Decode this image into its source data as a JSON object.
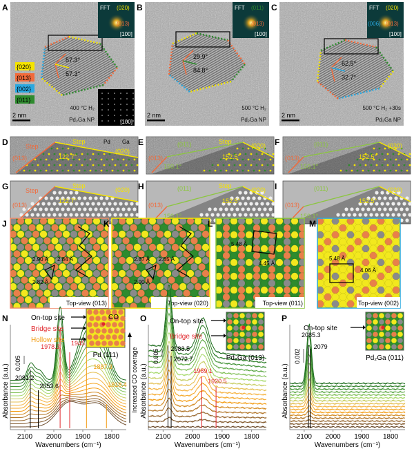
{
  "panels": {
    "A": {
      "label": "A",
      "fft": "FFT",
      "fft_spots": [
        "(020)",
        "(013)"
      ],
      "zone": "[100]",
      "zone2": "[100]",
      "angles": [
        "57.3°",
        "57.3°"
      ],
      "condition": "400 °C H₂",
      "sample": "Pd₂Ga NP",
      "scale": "2 nm",
      "legend": [
        {
          "text": "{020}",
          "color": "#f5e400"
        },
        {
          "text": "{013}",
          "color": "#f26a3a"
        },
        {
          "text": "{002}",
          "color": "#29a8e0"
        },
        {
          "text": "{011}",
          "color": "#2e8b2e"
        }
      ]
    },
    "B": {
      "label": "B",
      "fft": "FFT",
      "fft_spots": [
        "(011)",
        "(013)"
      ],
      "zone": "[100]",
      "angles": [
        "29.9°",
        "84.8°"
      ],
      "condition": "500 °C H₂",
      "sample": "Pd₂Ga NP",
      "scale": "2 nm"
    },
    "C": {
      "label": "C",
      "fft": "FFT",
      "fft_spots": [
        "(020)",
        "(006)",
        "(013)"
      ],
      "zone": "[100]",
      "angles": [
        "62.5°",
        "32.7°"
      ],
      "condition": "500 °C H₂ +30s",
      "sample": "Pd₂Ga NP",
      "scale": "2 nm"
    },
    "D": {
      "label": "D",
      "texts": [
        "Step",
        "Step",
        "(013)",
        "(020)",
        "122.7°"
      ],
      "legend": [
        "Pd",
        "Ga"
      ]
    },
    "E": {
      "label": "E",
      "texts": [
        "(011)",
        "Step",
        "(020)",
        "(013)",
        "152.5°",
        "150.1°"
      ]
    },
    "F": {
      "label": "F",
      "texts": [
        "(011)",
        "(020)",
        "(013)",
        "152.5°",
        "150.1°"
      ]
    },
    "G": {
      "label": "G",
      "texts": [
        "Step",
        "Step",
        "(020)",
        "(013)",
        "122.7°"
      ]
    },
    "H": {
      "label": "H",
      "texts": [
        "(011)",
        "Step",
        "(020)",
        "(013)",
        "152.5°",
        "150.1°"
      ]
    },
    "I": {
      "label": "I",
      "texts": [
        "(011)",
        "(020)",
        "(013)",
        "152.5°",
        "150.1°"
      ]
    },
    "J": {
      "label": "J",
      "caption": "Top-view (013)",
      "dims": [
        "2.90 Å",
        "2.82 Å",
        "2.84 Å"
      ],
      "border": "#f08c6a"
    },
    "K": {
      "label": "K",
      "caption": "Top-view (020)",
      "dims": [
        "2.87 Å",
        "2.90 Å",
        "2.85 Å"
      ],
      "border": "#f5e400"
    },
    "L": {
      "label": "L",
      "caption": "Top-view (011)",
      "dims": [
        "5.48 Å",
        "4.45 Å"
      ],
      "border": "#8cc63f"
    },
    "M": {
      "label": "M",
      "caption": "Top-view (002)",
      "dims": [
        "5.48 Å",
        "4.06 Å"
      ],
      "border": "#29a8e0"
    }
  },
  "colors": {
    "pd": "#e8804a",
    "ga": "#8a8a8a",
    "yellow": "#f2e81e",
    "green": "#2e8b2e",
    "bridge": "#e0262b",
    "hollow": "#f39c12"
  },
  "chart_data": [
    {
      "type": "line",
      "label": "N",
      "xlabel": "Wavenumbers (cm⁻¹)",
      "ylabel": "Absorbance (a.u.)",
      "xlim": [
        2150,
        1750
      ],
      "xticks": [
        2100,
        2000,
        1900,
        1800
      ],
      "scalebar": "0.005",
      "sites": [
        {
          "text": "On-top site",
          "color": "#000000"
        },
        {
          "text": "Bridge site",
          "color": "#e0262b"
        },
        {
          "text": "Hollow site",
          "color": "#f39c12"
        }
      ],
      "model_caption": "Pd (111)",
      "model_label": "CO",
      "peaks": [
        {
          "x": 2081.2,
          "color": "#000000"
        },
        {
          "x": 2053.6,
          "color": "#000000"
        },
        {
          "x": 1978.3,
          "color": "#e0262b"
        },
        {
          "x": 1945.2,
          "color": "#e0262b"
        },
        {
          "x": 1887.3,
          "color": "#f39c12"
        },
        {
          "x": 1818.4,
          "color": "#f39c12"
        }
      ],
      "side_label": "Increased CO coverage"
    },
    {
      "type": "line",
      "label": "O",
      "xlabel": "Wavenumbers (cm⁻¹)",
      "ylabel": "Absorbance (a.u.)",
      "xlim": [
        2150,
        1750
      ],
      "xticks": [
        2100,
        2000,
        1900,
        1800
      ],
      "scalebar": "0.005",
      "sites": [
        {
          "text": "On-top site",
          "color": "#000000"
        },
        {
          "text": "Bridge site",
          "color": "#e0262b"
        }
      ],
      "model_caption": "Pd₂Ga (013)",
      "peaks": [
        {
          "x": 2083.5,
          "color": "#000000"
        },
        {
          "x": 2072.7,
          "color": "#000000"
        },
        {
          "x": 1969.1,
          "color": "#e0262b"
        },
        {
          "x": 1920.5,
          "color": "#e0262b"
        }
      ]
    },
    {
      "type": "line",
      "label": "P",
      "xlabel": "Wavenumbers (cm⁻¹)",
      "ylabel": "Absorbance (a.u.)",
      "xlim": [
        2150,
        1750
      ],
      "xticks": [
        2100,
        2000,
        1900,
        1800
      ],
      "scalebar": "0.002",
      "sites": [
        {
          "text": "On-top site",
          "color": "#000000"
        }
      ],
      "model_caption": "Pd₂Ga (011)",
      "peaks": [
        {
          "x": 2085.3,
          "color": "#000000"
        },
        {
          "x": 2079.0,
          "color": "#000000"
        }
      ]
    }
  ]
}
